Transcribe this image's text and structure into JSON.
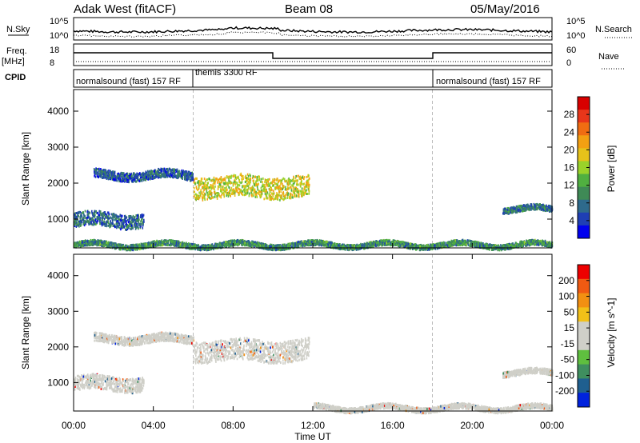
{
  "header": {
    "radar": "Adak West (fitACF)",
    "beam": "Beam 08",
    "date": "05/May/2016"
  },
  "noise_panel": {
    "left_label": "N.Sky",
    "right_label": "N.Search",
    "ticks_left": [
      "10^5",
      "10^0"
    ],
    "ticks_right": [
      "10^5",
      "10^0"
    ]
  },
  "freq_panel": {
    "left_label": "Freq.",
    "left_unit": "[MHz]",
    "right_label": "Nave",
    "ticks_left": [
      "18",
      "8"
    ],
    "ticks_right": [
      "60",
      "0"
    ]
  },
  "cpid_panel": {
    "label": "CPID",
    "modes": [
      {
        "name": "normalsound (fast) 157 RF",
        "start_hour": 0,
        "end_hour": 6
      },
      {
        "name": "themis 3300 RF",
        "start_hour": 6,
        "end_hour": 18
      },
      {
        "name": "normalsound (fast) 157 RF",
        "start_hour": 18,
        "end_hour": 24
      }
    ]
  },
  "time_axis": {
    "label": "Time UT",
    "ticks": [
      "00:00",
      "04:00",
      "08:00",
      "12:00",
      "16:00",
      "20:00",
      "00:00"
    ]
  },
  "chart_data": [
    {
      "type": "heatmap",
      "quantity": "Power",
      "ylabel": "Slant Range [km]",
      "yticks": [
        1000,
        2000,
        3000,
        4000
      ],
      "ylim": [
        200,
        4600
      ],
      "xlim_hours": [
        0,
        24
      ],
      "colorbar": {
        "label": "Power [dB]",
        "ticks": [
          4,
          8,
          12,
          16,
          20,
          24,
          28
        ],
        "range": [
          0,
          32
        ],
        "colors": [
          "#0000ee",
          "#1f3fb4",
          "#2e6a8c",
          "#3f8a56",
          "#50b040",
          "#9ad22a",
          "#e6c21a",
          "#f3a012",
          "#f06d12",
          "#e8361a",
          "#d80000"
        ]
      },
      "features": [
        {
          "hour_start": 1.0,
          "hour_end": 6.0,
          "range_start_km": 2100,
          "range_end_km": 2400,
          "level": 6
        },
        {
          "hour_start": 6.0,
          "hour_end": 11.8,
          "range_start_km": 1550,
          "range_end_km": 2300,
          "level": 18
        },
        {
          "hour_start": 0.0,
          "hour_end": 3.5,
          "range_start_km": 750,
          "range_end_km": 1250,
          "level": 7
        },
        {
          "hour_start": 21.5,
          "hour_end": 24.0,
          "range_start_km": 1200,
          "range_end_km": 1400,
          "level": 8
        },
        {
          "hour_start": 0.0,
          "hour_end": 24.0,
          "range_start_km": 220,
          "range_end_km": 400,
          "level": 10
        }
      ]
    },
    {
      "type": "heatmap",
      "quantity": "Velocity",
      "ylabel": "Slant Range [km]",
      "yticks": [
        1000,
        2000,
        3000,
        4000
      ],
      "ylim": [
        200,
        4600
      ],
      "xlim_hours": [
        0,
        24
      ],
      "colorbar": {
        "label": "Velocity [m s^-1]",
        "ticks": [
          200,
          100,
          50,
          15,
          -15,
          -50,
          -100,
          -200
        ],
        "range": [
          -250,
          250
        ],
        "colors": [
          "#0022dd",
          "#1f5f8f",
          "#3f8f5f",
          "#5fbf3f",
          "#cfcfc8",
          "#cfcfc8",
          "#f2c018",
          "#f29012",
          "#f05a12",
          "#ee0000"
        ]
      },
      "features": [
        {
          "hour_start": 1.0,
          "hour_end": 6.0,
          "range_start_km": 2100,
          "range_end_km": 2400,
          "level": 0
        },
        {
          "hour_start": 6.0,
          "hour_end": 11.8,
          "range_start_km": 1550,
          "range_end_km": 2300,
          "level": -5
        },
        {
          "hour_start": 0.0,
          "hour_end": 3.5,
          "range_start_km": 750,
          "range_end_km": 1250,
          "level": 0
        },
        {
          "hour_start": 21.5,
          "hour_end": 24.0,
          "range_start_km": 1200,
          "range_end_km": 1400,
          "level": 0
        },
        {
          "hour_start": 12.0,
          "hour_end": 24.0,
          "range_start_km": 220,
          "range_end_km": 400,
          "level": 30
        }
      ]
    }
  ]
}
